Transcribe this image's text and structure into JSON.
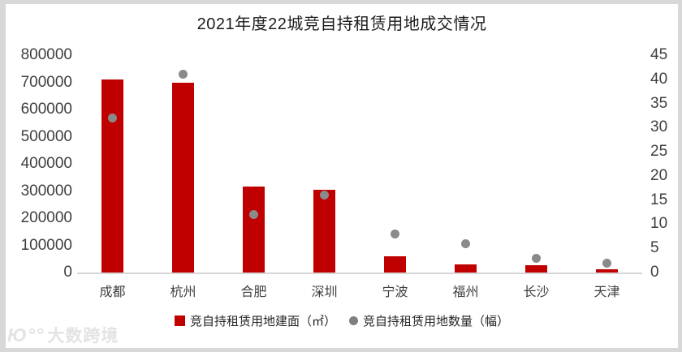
{
  "title": "2021年度22城竞自持租赁用地成交情况",
  "colors": {
    "bar": "#c00000",
    "dot": "#8a8a8a",
    "axis_text": "#3f3f3f",
    "axis_line": "#d6d6d6",
    "frame": "#d8d8d8"
  },
  "legend": {
    "items": [
      {
        "marker": "square-marker",
        "label": "竞自持租赁用地建面（㎡）"
      },
      {
        "marker": "circle-marker",
        "label": "竞自持租赁用地数量（幅）"
      }
    ]
  },
  "watermark": {
    "logo": "Ю°°",
    "text": "大数跨境"
  },
  "chart_data": {
    "type": "bar",
    "title": "2021年度22城竞自持租赁用地成交情况",
    "categories": [
      "成都",
      "杭州",
      "合肥",
      "深圳",
      "宁波",
      "福州",
      "长沙",
      "天津"
    ],
    "series": [
      {
        "name": "竞自持租赁用地建面（㎡）",
        "type": "bar",
        "axis": "left",
        "color": "#c00000",
        "values": [
          710000,
          700000,
          315000,
          305000,
          60000,
          31000,
          26000,
          11000
        ]
      },
      {
        "name": "竞自持租赁用地数量（幅）",
        "type": "scatter",
        "axis": "right",
        "color": "#8a8a8a",
        "values": [
          32,
          41,
          12,
          16,
          8,
          6,
          3,
          2
        ]
      }
    ],
    "left_axis": {
      "min": 0,
      "max": 800000,
      "step": 100000,
      "ticks": [
        0,
        100000,
        200000,
        300000,
        400000,
        500000,
        600000,
        700000,
        800000
      ]
    },
    "right_axis": {
      "min": 0,
      "max": 45,
      "step": 5,
      "ticks": [
        0,
        5,
        10,
        15,
        20,
        25,
        30,
        35,
        40,
        45
      ]
    },
    "grid": false,
    "legend_position": "bottom"
  }
}
